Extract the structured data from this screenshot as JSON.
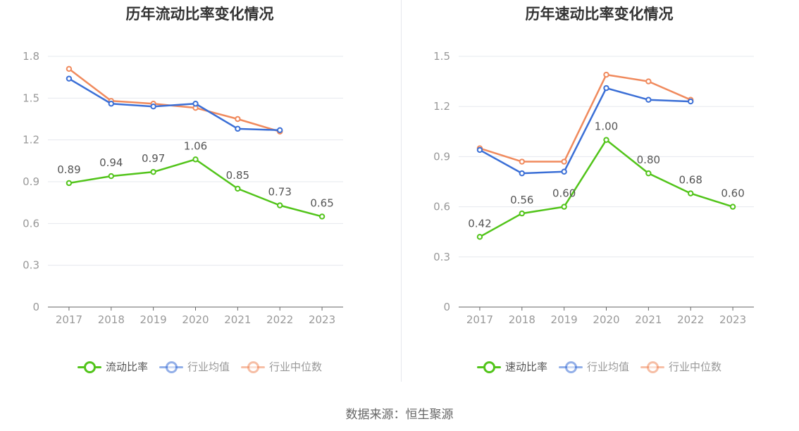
{
  "colors": {
    "company": "#52c41a",
    "industry_avg": "#3b6fd6",
    "industry_median": "#f08a5d",
    "axis": "#666666",
    "grid": "#e6e8ee",
    "tick_text": "#999999",
    "label_text": "#555555"
  },
  "source": "数据来源：恒生聚源",
  "chart_data": [
    {
      "type": "line",
      "title": "历年流动比率变化情况",
      "categories": [
        "2017",
        "2018",
        "2019",
        "2020",
        "2021",
        "2022",
        "2023"
      ],
      "yticks": [
        "0",
        "0.3",
        "0.6",
        "0.9",
        "1.2",
        "1.5",
        "1.8"
      ],
      "ylim": [
        0,
        1.8
      ],
      "grid": true,
      "legend_position": "bottom",
      "series": [
        {
          "name": "流动比率",
          "color": "#52c41a",
          "labels": true,
          "legend_dim": false,
          "values": [
            0.89,
            0.94,
            0.97,
            1.06,
            0.85,
            0.73,
            0.65
          ],
          "data_labels": [
            "0.89",
            "0.94",
            "0.97",
            "1.06",
            "0.85",
            "0.73",
            "0.65"
          ]
        },
        {
          "name": "行业均值",
          "color": "#3b6fd6",
          "labels": false,
          "legend_dim": true,
          "values": [
            1.64,
            1.46,
            1.44,
            1.46,
            1.28,
            1.27,
            null
          ]
        },
        {
          "name": "行业中位数",
          "color": "#f08a5d",
          "labels": false,
          "legend_dim": true,
          "values": [
            1.71,
            1.48,
            1.46,
            1.43,
            1.35,
            1.26,
            null
          ]
        }
      ]
    },
    {
      "type": "line",
      "title": "历年速动比率变化情况",
      "categories": [
        "2017",
        "2018",
        "2019",
        "2020",
        "2021",
        "2022",
        "2023"
      ],
      "yticks": [
        "0",
        "0.3",
        "0.6",
        "0.9",
        "1.2",
        "1.5"
      ],
      "ylim": [
        0,
        1.5
      ],
      "grid": true,
      "legend_position": "bottom",
      "series": [
        {
          "name": "速动比率",
          "color": "#52c41a",
          "labels": true,
          "legend_dim": false,
          "values": [
            0.42,
            0.56,
            0.6,
            1.0,
            0.8,
            0.68,
            0.6
          ],
          "data_labels": [
            "0.42",
            "0.56",
            "0.60",
            "1.00",
            "0.80",
            "0.68",
            "0.60"
          ]
        },
        {
          "name": "行业均值",
          "color": "#3b6fd6",
          "labels": false,
          "legend_dim": true,
          "values": [
            0.94,
            0.8,
            0.81,
            1.31,
            1.24,
            1.23,
            null
          ]
        },
        {
          "name": "行业中位数",
          "color": "#f08a5d",
          "labels": false,
          "legend_dim": true,
          "values": [
            0.95,
            0.87,
            0.87,
            1.39,
            1.35,
            1.24,
            null
          ]
        }
      ]
    }
  ]
}
